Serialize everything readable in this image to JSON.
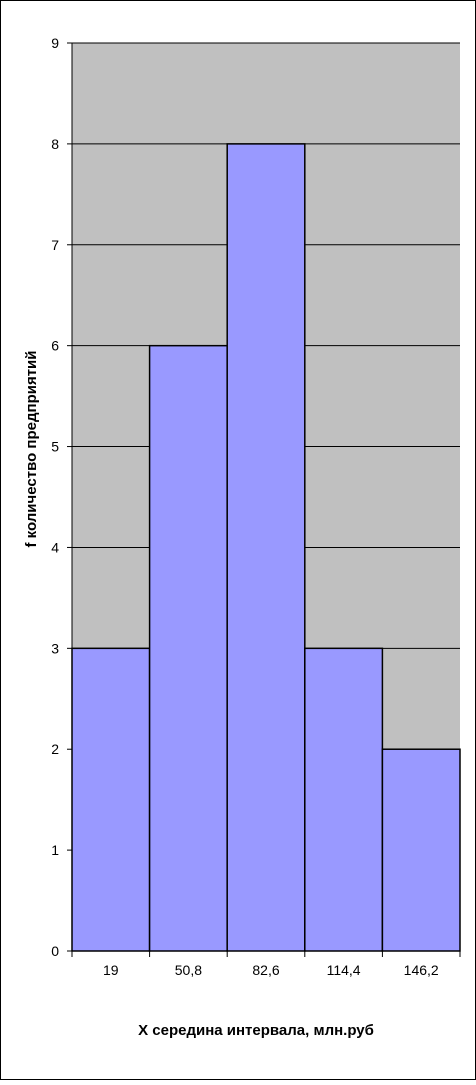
{
  "chart_data": {
    "type": "bar",
    "title": "",
    "xlabel": "X середина интервала, млн.руб",
    "ylabel": "f количество предприятий",
    "categories": [
      "19",
      "50,8",
      "82,6",
      "114,4",
      "146,2"
    ],
    "values": [
      3,
      6,
      8,
      3,
      2
    ],
    "ylim": [
      0,
      9
    ],
    "yticks": [
      "0",
      "1",
      "2",
      "3",
      "4",
      "5",
      "6",
      "7",
      "8",
      "9"
    ],
    "grid": true,
    "legend": "none",
    "colors": {
      "bar_fill": "#9999ff",
      "bar_stroke": "#000000",
      "plot_background": "#c0c0c0",
      "gridline": "#000000",
      "page_background": "#ffffff"
    }
  }
}
